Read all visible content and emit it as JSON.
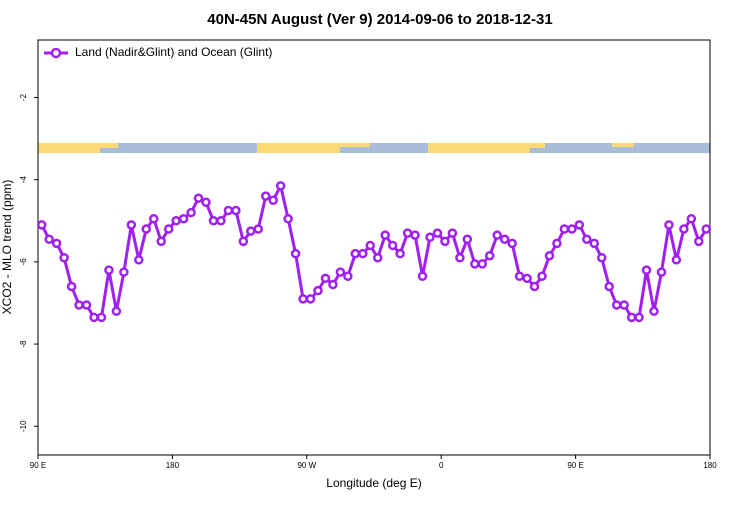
{
  "chart_data": {
    "type": "line",
    "title": "40N-45N August (Ver 9)   2014-09-06 to 2018-12-31",
    "x_label": "Longitude (deg E)",
    "y_label": "XCO2 - MLO trend (ppm)",
    "xlim": [
      90,
      540
    ],
    "xticks": [
      {
        "value": 90,
        "label": "90 E"
      },
      180,
      {
        "value": 270,
        "label": "90 W"
      },
      {
        "value": 360,
        "label": "0"
      },
      {
        "value": 450,
        "label": "90 E"
      },
      {
        "value": 540,
        "label": "180"
      }
    ],
    "ylim": [
      -10.7,
      -0.6
    ],
    "yticks": [
      -2,
      -4,
      -6,
      -8,
      -10
    ],
    "legend": "top-left",
    "x": [
      92.5,
      97.5,
      102.5,
      107.5,
      112.5,
      117.5,
      122.5,
      127.5,
      132.5,
      137.5,
      142.5,
      147.5,
      152.5,
      157.5,
      162.5,
      167.5,
      172.5,
      177.5,
      182.5,
      187.5,
      192.5,
      197.5,
      202.5,
      207.5,
      212.5,
      217.5,
      222.5,
      227.5,
      232.5,
      237.5,
      242.5,
      247.5,
      252.5,
      257.5,
      262.5,
      267.5,
      272.5,
      277.5,
      282.5,
      287.5,
      292.5,
      297.5,
      302.5,
      307.5,
      312.5,
      317.5,
      322.5,
      327.5,
      332.5,
      337.5,
      342.5,
      347.5,
      352.5,
      357.5,
      362.5,
      367.5,
      372.5,
      377.5,
      382.5,
      387.5,
      392.5,
      397.5,
      402.5,
      407.5,
      412.5,
      417.5,
      422.5,
      427.5,
      432.5,
      437.5,
      442.5,
      447.5,
      452.5,
      457.5,
      462.5,
      467.5,
      472.5,
      477.5,
      482.5,
      487.5,
      492.5,
      497.5,
      502.5,
      507.5,
      512.5,
      517.5,
      522.5,
      527.5,
      532.5,
      537.5
    ],
    "series": [
      {
        "name": "Land (Nadir&Glint) and Ocean (Glint)",
        "color": "#a020f0",
        "values": [
          -5.1,
          -5.45,
          -5.55,
          -5.9,
          -6.6,
          -7.05,
          -7.05,
          -7.35,
          -7.35,
          -6.2,
          -7.2,
          -6.25,
          -5.1,
          -5.95,
          -5.2,
          -4.95,
          -5.5,
          -5.2,
          -5.0,
          -4.95,
          -4.8,
          -4.45,
          -4.55,
          -5.0,
          -5.0,
          -4.75,
          -4.75,
          -5.5,
          -5.25,
          -5.2,
          -4.4,
          -4.5,
          -4.15,
          -4.95,
          -5.8,
          -6.9,
          -6.9,
          -6.7,
          -6.4,
          -6.55,
          -6.25,
          -6.35,
          -5.8,
          -5.8,
          -5.6,
          -5.9,
          -5.35,
          -5.6,
          -5.8,
          -5.3,
          -5.35,
          -6.35,
          -5.4,
          -5.3,
          -5.5,
          -5.3,
          -5.9,
          -5.45,
          -6.05,
          -6.05,
          -5.85,
          -5.35,
          -5.45,
          -5.55,
          -6.35,
          -6.4,
          -6.6,
          -6.35,
          -5.85,
          -5.55,
          -5.2,
          -5.2,
          -5.1,
          -5.45,
          -5.55,
          -5.9,
          -6.6,
          -7.05,
          -7.05,
          -7.35,
          -7.35,
          -6.2,
          -7.2,
          -6.25,
          -5.1,
          -5.95,
          -5.2,
          -4.95,
          -5.5,
          -5.2
        ]
      }
    ]
  }
}
